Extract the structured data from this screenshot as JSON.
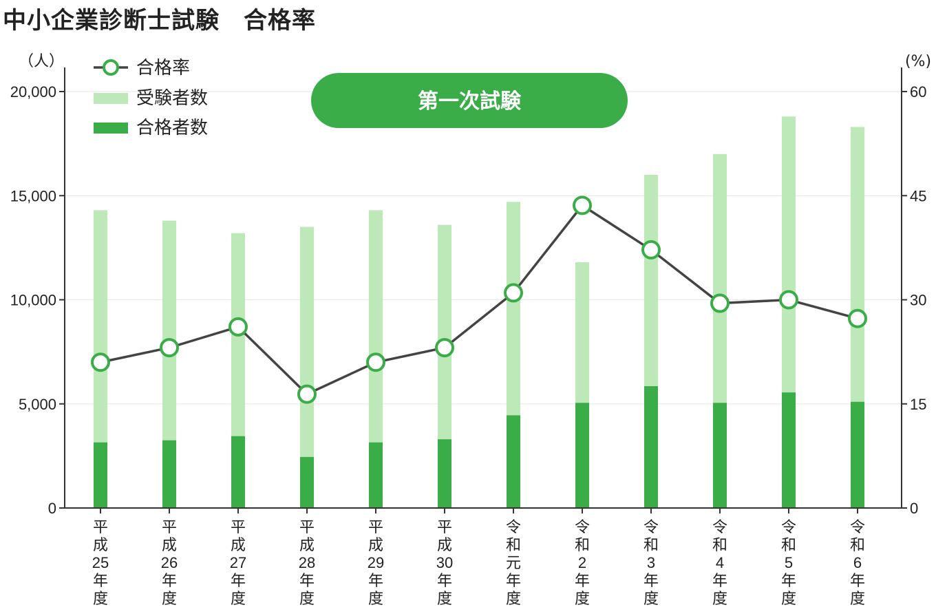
{
  "title": "中小企業診断士試験　合格率",
  "badge": "第一次試験",
  "colors": {
    "applicants": "#bde9b8",
    "passers": "#3aac48",
    "line": "#444444",
    "marker_stroke": "#3aac48",
    "badge_bg": "#3aac48",
    "grid": "#e6e6e6"
  },
  "chart_data": {
    "type": "bar",
    "categories": [
      [
        "平",
        "成",
        "25",
        "年",
        "度"
      ],
      [
        "平",
        "成",
        "26",
        "年",
        "度"
      ],
      [
        "平",
        "成",
        "27",
        "年",
        "度"
      ],
      [
        "平",
        "成",
        "28",
        "年",
        "度"
      ],
      [
        "平",
        "成",
        "29",
        "年",
        "度"
      ],
      [
        "平",
        "成",
        "30",
        "年",
        "度"
      ],
      [
        "令",
        "和",
        "元",
        "年",
        "度"
      ],
      [
        "令",
        "和",
        "2",
        "年",
        "度"
      ],
      [
        "令",
        "和",
        "3",
        "年",
        "度"
      ],
      [
        "令",
        "和",
        "4",
        "年",
        "度"
      ],
      [
        "令",
        "和",
        "5",
        "年",
        "度"
      ],
      [
        "令",
        "和",
        "6",
        "年",
        "度"
      ]
    ],
    "series": [
      {
        "name": "受験者数",
        "kind": "bar",
        "axis": "left",
        "color": "#bde9b8",
        "values": [
          14300,
          13800,
          13200,
          13500,
          14300,
          13600,
          14700,
          11800,
          16000,
          17000,
          18800,
          18300
        ]
      },
      {
        "name": "合格者数",
        "kind": "bar",
        "axis": "left",
        "color": "#3aac48",
        "values": [
          3150,
          3250,
          3450,
          2450,
          3150,
          3300,
          4450,
          5050,
          5850,
          5050,
          5550,
          5100
        ]
      },
      {
        "name": "合格率",
        "kind": "line",
        "axis": "right",
        "color": "#444444",
        "values": [
          21.0,
          23.1,
          26.1,
          16.4,
          21.0,
          23.1,
          31.0,
          43.6,
          37.2,
          29.5,
          30.0,
          27.3
        ]
      }
    ],
    "y_left": {
      "unit": "（人）",
      "min": 0,
      "max": 20000,
      "ticks": [
        0,
        5000,
        10000,
        15000,
        20000
      ],
      "tick_labels": [
        "0",
        "5,000",
        "10,000",
        "15,000",
        "20,000"
      ]
    },
    "y_right": {
      "unit": "(%)",
      "min": 0,
      "max": 60,
      "ticks": [
        0,
        15,
        30,
        45,
        60
      ],
      "tick_labels": [
        "0",
        "15",
        "30",
        "45",
        "60"
      ]
    },
    "legend": [
      "合格率",
      "受験者数",
      "合格者数"
    ],
    "legend_position": "top-left",
    "grid": true
  }
}
